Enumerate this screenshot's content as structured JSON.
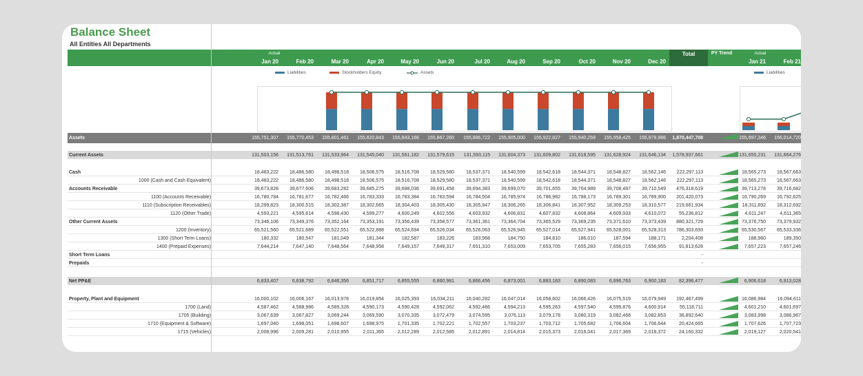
{
  "title": "Balance Sheet",
  "subtitle": "All Entities All Departments",
  "header": {
    "actual_label": "Actual",
    "months": [
      "Jan 20",
      "Feb 20",
      "Mar 20",
      "Apr 20",
      "May 20",
      "Jun 20",
      "Jul 20",
      "Aug 20",
      "Sep 20",
      "Oct 20",
      "Nov 20",
      "Dec 20"
    ],
    "total_label": "Total",
    "py_trend_label": "PY Trend",
    "months2": [
      "Jan 21",
      "Feb 21"
    ]
  },
  "legend": {
    "liabilities": "Liabilities",
    "equity": "Stockholders Equity",
    "assets": "Assets"
  },
  "colors": {
    "liabilities": "#3d7a9e",
    "equity": "#c9472c",
    "assets": "#2d6b55",
    "header": "#3e9a4f",
    "total": "#2d6b3a"
  },
  "rows": [
    {
      "label": "Assets",
      "style": "band",
      "values": [
        "155,751,307",
        "155,770,453",
        "155,801,461",
        "155,820,843",
        "155,843,166",
        "155,867,260",
        "155,886,722",
        "155,905,000",
        "155,922,827",
        "155,940,259",
        "155,958,425",
        "155,979,986"
      ],
      "total": "1,870,447,708",
      "extra": [
        "155,997,346",
        "156,014,720"
      ]
    },
    {
      "label": "Current Assets",
      "style": "band2",
      "values": [
        "131,503,156",
        "131,513,761",
        "131,533,964",
        "131,545,040",
        "131,561,182",
        "131,579,615",
        "131,593,115",
        "131,604,373",
        "131,609,802",
        "131,618,595",
        "131,628,924",
        "131,646,134"
      ],
      "total": "1,578,937,661",
      "extra": [
        "131,655,231",
        "131,664,276"
      ]
    },
    {
      "label": "Cash",
      "style": "head",
      "values": [
        "18,483,222",
        "18,486,580",
        "18,498,518",
        "18,506,575",
        "18,516,708",
        "18,529,580",
        "18,537,371",
        "18,540,599",
        "18,542,618",
        "18,544,371",
        "18,548,827",
        "18,562,146"
      ],
      "total": "222,297,113",
      "extra": [
        "18,565,273",
        "18,567,663"
      ]
    },
    {
      "label": "1000 (Cash and Cash Equivalent)",
      "style": "sub",
      "values": [
        "18,483,222",
        "18,486,580",
        "18,498,518",
        "18,506,575",
        "18,516,708",
        "18,529,580",
        "18,537,371",
        "18,540,599",
        "18,542,618",
        "18,544,371",
        "18,548,827",
        "18,562,146"
      ],
      "total": "222,297,113",
      "extra": [
        "18,565,273",
        "18,567,663"
      ]
    },
    {
      "label": "Accounts Receivable",
      "style": "head",
      "values": [
        "39,673,828",
        "39,677,606",
        "39,683,282",
        "39,685,275",
        "39,688,036",
        "39,691,458",
        "39,694,383",
        "39,699,070",
        "39,701,655",
        "39,704,989",
        "39,708,487",
        "39,710,549"
      ],
      "total": "476,318,619",
      "extra": [
        "39,713,278",
        "39,716,682"
      ]
    },
    {
      "label": "1100 (Accounts Receivable)",
      "style": "sub",
      "values": [
        "16,780,784",
        "16,781,677",
        "16,782,466",
        "16,783,333",
        "16,783,384",
        "16,783,594",
        "16,784,504",
        "16,785,974",
        "16,786,982",
        "16,788,173",
        "16,789,301",
        "16,789,900"
      ],
      "total": "201,420,073",
      "extra": [
        "16,790,269",
        "16,792,625"
      ]
    },
    {
      "label": "1110 (Subscription Receivables)",
      "style": "sub",
      "values": [
        "18,299,823",
        "18,300,515",
        "18,302,387",
        "18,302,665",
        "18,304,403",
        "18,305,430",
        "18,305,947",
        "18,306,265",
        "18,306,841",
        "18,307,952",
        "18,309,253",
        "18,310,577"
      ],
      "total": "219,661,934",
      "extra": [
        "18,311,692",
        "18,312,692"
      ]
    },
    {
      "label": "1120 (Other Trade)",
      "style": "sub",
      "values": [
        "4,593,221",
        "4,595,614",
        "4,598,430",
        "4,599,277",
        "4,600,249",
        "4,602,556",
        "4,603,932",
        "4,606,831",
        "4,607,832",
        "4,608,864",
        "4,609,933",
        "4,610,072"
      ],
      "total": "55,236,812",
      "extra": [
        "4,611,247",
        "4,611,365"
      ]
    },
    {
      "label": "Other Current Assets",
      "style": "head",
      "values": [
        "73,346,106",
        "73,349,376",
        "73,352,164",
        "73,353,191",
        "73,356,439",
        "73,358,577",
        "73,361,361",
        "73,364,704",
        "73,365,529",
        "73,369,235",
        "73,371,610",
        "73,373,439"
      ],
      "total": "880,321,729",
      "extra": [
        "73,376,750",
        "73,379,932"
      ]
    },
    {
      "label": "1200 (Inventory)",
      "style": "sub",
      "values": [
        "65,521,560",
        "65,521,689",
        "65,522,551",
        "65,522,888",
        "65,524,694",
        "65,526,034",
        "65,526,063",
        "65,526,945",
        "65,527,014",
        "65,527,941",
        "65,528,001",
        "65,528,313"
      ],
      "total": "786,303,693",
      "extra": [
        "65,530,567",
        "65,533,336"
      ]
    },
    {
      "label": "1300 (Short Term Loans)",
      "style": "sub",
      "values": [
        "180,332",
        "180,547",
        "181,049",
        "181,344",
        "182,587",
        "183,226",
        "183,968",
        "184,750",
        "184,810",
        "186,010",
        "187,594",
        "188,171"
      ],
      "total": "2,204,408",
      "extra": [
        "188,960",
        "189,350"
      ]
    },
    {
      "label": "1400 (Prepaid Expenses)",
      "style": "sub",
      "values": [
        "7,644,214",
        "7,647,140",
        "7,648,564",
        "7,648,958",
        "7,649,157",
        "7,649,317",
        "7,651,310",
        "7,653,009",
        "7,653,705",
        "7,655,283",
        "7,656,015",
        "7,656,955"
      ],
      "total": "91,813,628",
      "extra": [
        "7,657,223",
        "7,657,246"
      ]
    },
    {
      "label": "Short Term Loans",
      "style": "head",
      "values": [
        "",
        "",
        "",
        "",
        "",
        "",
        "",
        "",
        "",
        "",
        "",
        ""
      ],
      "total": "-",
      "extra": [
        "",
        ""
      ]
    },
    {
      "label": "Prepaids",
      "style": "head",
      "values": [
        "",
        "",
        "",
        "",
        "",
        "",
        "",
        "",
        "",
        "",
        "",
        ""
      ],
      "total": "-",
      "extra": [
        "",
        ""
      ]
    },
    {
      "label": "Net PP&E",
      "style": "band2",
      "values": [
        "6,833,407",
        "6,838,792",
        "6,846,356",
        "6,851,717",
        "6,855,555",
        "6,860,981",
        "6,866,456",
        "6,873,001",
        "6,883,183",
        "6,890,083",
        "6,896,763",
        "6,900,183"
      ],
      "total": "82,396,477",
      "extra": [
        "6,906,618",
        "6,913,028"
      ]
    },
    {
      "label": "Property, Plant and Equipment",
      "style": "head",
      "values": [
        "16,000,102",
        "16,006,167",
        "16,013,978",
        "16,019,854",
        "16,025,393",
        "16,034,211",
        "16,040,282",
        "16,047,014",
        "16,058,602",
        "16,066,426",
        "16,075,519",
        "16,079,949"
      ],
      "total": "192,467,499",
      "extra": [
        "16,086,984",
        "16,094,611"
      ]
    },
    {
      "label": "1700 (Land)",
      "style": "sub",
      "values": [
        "4,587,462",
        "4,588,986",
        "4,589,328",
        "4,590,173",
        "4,590,428",
        "4,592,062",
        "4,592,466",
        "4,594,213",
        "4,595,263",
        "4,597,540",
        "4,599,876",
        "4,600,914"
      ],
      "total": "55,118,711",
      "extra": [
        "4,601,210",
        "4,601,697"
      ]
    },
    {
      "label": "1705 (Building)",
      "style": "sub",
      "values": [
        "3,067,639",
        "3,067,827",
        "3,069,244",
        "3,069,590",
        "3,070,335",
        "3,072,479",
        "3,074,595",
        "3,076,113",
        "3,079,178",
        "3,080,319",
        "3,082,468",
        "3,082,853"
      ],
      "total": "36,892,640",
      "extra": [
        "3,083,998",
        "3,086,967"
      ]
    },
    {
      "label": "1710 (Equipment & Software)",
      "style": "sub",
      "values": [
        "1,697,040",
        "1,698,051",
        "1,698,607",
        "1,698,975",
        "1,701,335",
        "1,702,221",
        "1,702,557",
        "1,703,237",
        "1,703,712",
        "1,705,682",
        "1,706,604",
        "1,706,644"
      ],
      "total": "20,424,665",
      "extra": [
        "1,707,626",
        "1,707,723"
      ]
    },
    {
      "label": "1715 (Vehicles)",
      "style": "sub",
      "values": [
        "2,008,996",
        "2,009,281",
        "2,010,955",
        "2,011,365",
        "2,012,289",
        "2,012,585",
        "2,012,891",
        "2,014,814",
        "2,015,373",
        "2,016,041",
        "2,017,369",
        "2,018,372"
      ],
      "total": "24,160,332",
      "extra": [
        "2,019,127",
        "2,020,541"
      ]
    }
  ],
  "chart_data": {
    "type": "bar",
    "categories": [
      "Jan 20",
      "Feb 20",
      "Mar 20",
      "Apr 20",
      "May 20",
      "Jun 20",
      "Jul 20",
      "Aug 20",
      "Sep 20",
      "Oct 20",
      "Nov 20",
      "Dec 20"
    ],
    "series": [
      {
        "name": "Liabilities",
        "values": [
          87,
          87,
          87,
          87,
          87,
          87,
          87,
          87,
          87,
          87,
          87,
          87
        ]
      },
      {
        "name": "Stockholders Equity",
        "values": [
          68,
          68,
          68,
          68,
          68,
          68,
          68,
          68,
          68,
          68,
          68,
          68
        ]
      },
      {
        "name": "Assets",
        "values": [
          155,
          155,
          155,
          155,
          155,
          155,
          155,
          155,
          155,
          155,
          155,
          155
        ]
      }
    ],
    "ylim": [
      0,
      200
    ]
  }
}
